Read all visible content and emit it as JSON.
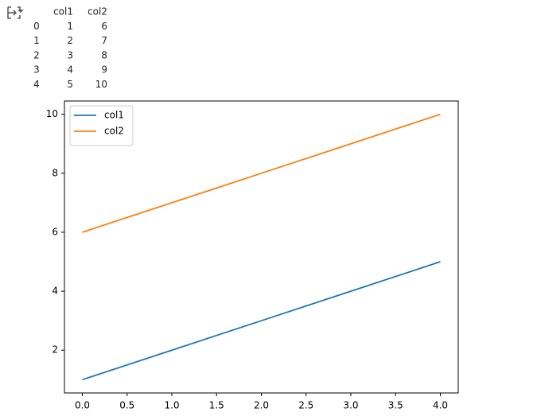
{
  "table": {
    "columns": [
      "col1",
      "col2"
    ],
    "index": [
      0,
      1,
      2,
      3,
      4
    ],
    "rows": [
      [
        1,
        6
      ],
      [
        2,
        7
      ],
      [
        3,
        8
      ],
      [
        4,
        9
      ],
      [
        5,
        10
      ]
    ]
  },
  "chart_data": {
    "type": "line",
    "x": [
      0,
      1,
      2,
      3,
      4
    ],
    "series": [
      {
        "name": "col1",
        "color": "#1f77b4",
        "values": [
          1,
          2,
          3,
          4,
          5
        ]
      },
      {
        "name": "col2",
        "color": "#ff7f0e",
        "values": [
          6,
          7,
          8,
          9,
          10
        ]
      }
    ],
    "xlim": [
      -0.2,
      4.2
    ],
    "xticks": [
      {
        "value": 0,
        "label": "0.0"
      },
      {
        "value": 0.5,
        "label": "0.5"
      },
      {
        "value": 1,
        "label": "1.0"
      },
      {
        "value": 1.5,
        "label": "1.5"
      },
      {
        "value": 2,
        "label": "2.0"
      },
      {
        "value": 2.5,
        "label": "2.5"
      },
      {
        "value": 3,
        "label": "3.0"
      },
      {
        "value": 3.5,
        "label": "3.5"
      },
      {
        "value": 4,
        "label": "4.0"
      }
    ],
    "ylim": [
      0.55,
      10.45
    ],
    "yticks": [
      2,
      4,
      6,
      8,
      10
    ],
    "grid": false,
    "legend": "upper-left"
  }
}
